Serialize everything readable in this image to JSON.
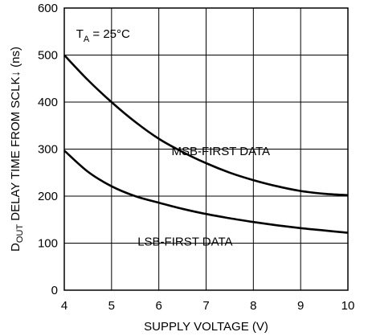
{
  "chart_data": {
    "type": "line",
    "xlabel": "SUPPLY VOLTAGE (V)",
    "ylabel": {
      "prefix": "D",
      "subscript": "OUT",
      "suffix": " DELAY TIME FROM SCLK↓ (ns)"
    },
    "annotation": {
      "prefix": "T",
      "subscript": "A",
      "suffix": " = 25°C"
    },
    "xlim": [
      4,
      10
    ],
    "ylim": [
      0,
      600
    ],
    "xticks": [
      "4",
      "5",
      "6",
      "7",
      "8",
      "9",
      "10"
    ],
    "yticks": [
      "0",
      "100",
      "200",
      "300",
      "400",
      "500",
      "600"
    ],
    "grid": true,
    "series": [
      {
        "name": "MSB-FIRST DATA",
        "x": [
          4,
          4.5,
          5,
          5.5,
          6,
          6.5,
          7,
          7.5,
          8,
          8.5,
          9,
          9.5,
          10
        ],
        "y": [
          500,
          447,
          400,
          358,
          322,
          294,
          270,
          250,
          234,
          221,
          211,
          205,
          202
        ]
      },
      {
        "name": "LSB-FIRST DATA",
        "x": [
          4,
          4.5,
          5,
          5.5,
          6,
          6.5,
          7,
          7.5,
          8,
          8.5,
          9,
          9.5,
          10
        ],
        "y": [
          297,
          252,
          221,
          200,
          186,
          173,
          162,
          153,
          145,
          138,
          132,
          127,
          122
        ]
      }
    ]
  }
}
